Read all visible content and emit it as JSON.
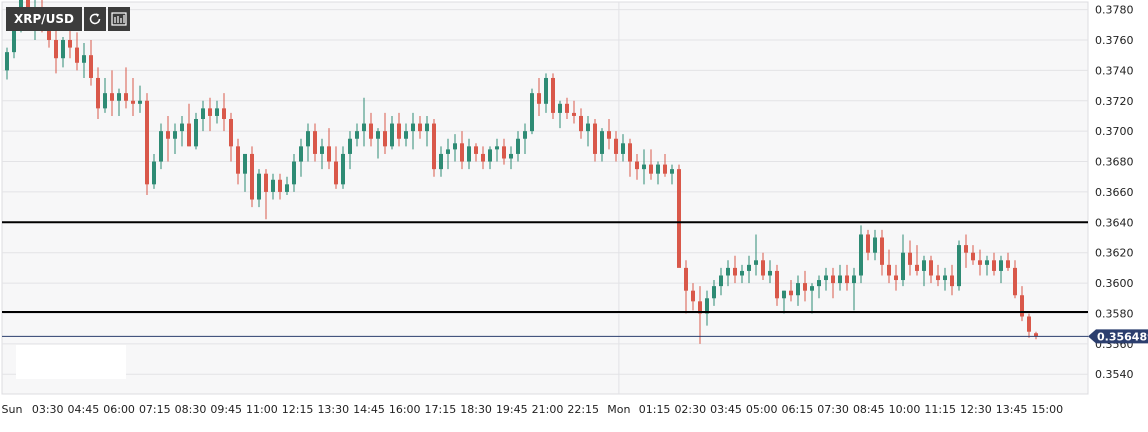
{
  "toolbar": {
    "symbol": "XRP/USD",
    "refresh_icon": "refresh-icon",
    "chart_type_icon": "candles-icon"
  },
  "colors": {
    "background": "#f7f7f8",
    "grid": "#e3e3e6",
    "up": "#2e8b74",
    "down": "#d9584a",
    "level_line": "#000000",
    "price_line": "#2b3e6e",
    "price_tag": "#2b3e6e",
    "axis_text": "#222222"
  },
  "chart_data": {
    "type": "candlestick",
    "title": "",
    "xlabel": "",
    "ylabel": "",
    "ylim": [
      0.3527,
      0.3785
    ],
    "y_ticks": [
      "0.3780",
      "0.3760",
      "0.3740",
      "0.3720",
      "0.3700",
      "0.3680",
      "0.3660",
      "0.3640",
      "0.3620",
      "0.3600",
      "0.3580",
      "0.3560",
      "0.3540"
    ],
    "x_labels": [
      "Sun",
      "03:30",
      "04:45",
      "06:00",
      "07:15",
      "08:30",
      "09:45",
      "11:00",
      "12:15",
      "13:30",
      "14:45",
      "16:00",
      "17:15",
      "18:30",
      "19:45",
      "21:00",
      "22:15",
      "Mon",
      "01:15",
      "02:30",
      "03:45",
      "05:00",
      "06:15",
      "07:30",
      "08:45",
      "10:00",
      "11:15",
      "12:30",
      "13:45",
      "15:00"
    ],
    "horizontal_levels": [
      0.364,
      0.3581
    ],
    "current_price": 0.356489,
    "current_price_label": "0.356489",
    "grid": true,
    "series": [
      {
        "values": [
          [
            0.374,
            0.3755,
            0.3734,
            0.3752
          ],
          [
            0.3752,
            0.3778,
            0.3748,
            0.3775
          ],
          [
            0.3775,
            0.38,
            0.3765,
            0.379
          ],
          [
            0.379,
            0.3798,
            0.377,
            0.3775
          ],
          [
            0.3775,
            0.379,
            0.376,
            0.378
          ],
          [
            0.378,
            0.379,
            0.3765,
            0.377
          ],
          [
            0.377,
            0.3778,
            0.3755,
            0.376
          ],
          [
            0.376,
            0.3768,
            0.3738,
            0.3748
          ],
          [
            0.3748,
            0.3762,
            0.3742,
            0.376
          ],
          [
            0.376,
            0.3768,
            0.3748,
            0.3755
          ],
          [
            0.3755,
            0.3765,
            0.374,
            0.3745
          ],
          [
            0.3745,
            0.3758,
            0.3735,
            0.375
          ],
          [
            0.375,
            0.376,
            0.373,
            0.3735
          ],
          [
            0.3735,
            0.3742,
            0.3708,
            0.3715
          ],
          [
            0.3715,
            0.3735,
            0.3712,
            0.3725
          ],
          [
            0.3725,
            0.374,
            0.371,
            0.372
          ],
          [
            0.372,
            0.3728,
            0.371,
            0.3725
          ],
          [
            0.3725,
            0.3742,
            0.3715,
            0.372
          ],
          [
            0.372,
            0.3735,
            0.371,
            0.3718
          ],
          [
            0.3718,
            0.373,
            0.3712,
            0.372
          ],
          [
            0.372,
            0.3725,
            0.3658,
            0.3665
          ],
          [
            0.3665,
            0.3685,
            0.3662,
            0.368
          ],
          [
            0.368,
            0.3705,
            0.3675,
            0.37
          ],
          [
            0.37,
            0.371,
            0.368,
            0.3695
          ],
          [
            0.3695,
            0.3705,
            0.3685,
            0.37
          ],
          [
            0.37,
            0.371,
            0.369,
            0.3705
          ],
          [
            0.3705,
            0.3718,
            0.369,
            0.369
          ],
          [
            0.369,
            0.3712,
            0.3688,
            0.3708
          ],
          [
            0.3708,
            0.372,
            0.37,
            0.3715
          ],
          [
            0.3715,
            0.3722,
            0.37,
            0.371
          ],
          [
            0.371,
            0.372,
            0.3705,
            0.3715
          ],
          [
            0.3715,
            0.3725,
            0.37,
            0.3708
          ],
          [
            0.3708,
            0.3712,
            0.368,
            0.369
          ],
          [
            0.369,
            0.3695,
            0.3665,
            0.3672
          ],
          [
            0.3672,
            0.3685,
            0.366,
            0.3685
          ],
          [
            0.3685,
            0.369,
            0.365,
            0.3655
          ],
          [
            0.3655,
            0.3675,
            0.365,
            0.3672
          ],
          [
            0.3672,
            0.3675,
            0.3642,
            0.366
          ],
          [
            0.366,
            0.3672,
            0.3655,
            0.3668
          ],
          [
            0.3668,
            0.3672,
            0.3655,
            0.366
          ],
          [
            0.366,
            0.367,
            0.3658,
            0.3665
          ],
          [
            0.3665,
            0.3685,
            0.366,
            0.368
          ],
          [
            0.368,
            0.3695,
            0.367,
            0.369
          ],
          [
            0.369,
            0.3705,
            0.368,
            0.37
          ],
          [
            0.37,
            0.3705,
            0.368,
            0.3685
          ],
          [
            0.3685,
            0.3695,
            0.3675,
            0.369
          ],
          [
            0.369,
            0.3702,
            0.3675,
            0.368
          ],
          [
            0.368,
            0.369,
            0.3662,
            0.3665
          ],
          [
            0.3665,
            0.369,
            0.3662,
            0.3685
          ],
          [
            0.3685,
            0.37,
            0.3675,
            0.3695
          ],
          [
            0.3695,
            0.3705,
            0.369,
            0.37
          ],
          [
            0.37,
            0.3722,
            0.369,
            0.3705
          ],
          [
            0.3705,
            0.3712,
            0.369,
            0.3695
          ],
          [
            0.3695,
            0.3702,
            0.3682,
            0.37
          ],
          [
            0.37,
            0.3712,
            0.3685,
            0.369
          ],
          [
            0.369,
            0.371,
            0.3688,
            0.3705
          ],
          [
            0.3705,
            0.3712,
            0.369,
            0.3695
          ],
          [
            0.3695,
            0.3705,
            0.369,
            0.37
          ],
          [
            0.37,
            0.3712,
            0.3688,
            0.3705
          ],
          [
            0.3705,
            0.371,
            0.3695,
            0.37
          ],
          [
            0.37,
            0.371,
            0.369,
            0.3705
          ],
          [
            0.3705,
            0.3708,
            0.367,
            0.3675
          ],
          [
            0.3675,
            0.369,
            0.367,
            0.3685
          ],
          [
            0.3685,
            0.3695,
            0.3675,
            0.3688
          ],
          [
            0.3688,
            0.3698,
            0.368,
            0.3692
          ],
          [
            0.3692,
            0.37,
            0.3675,
            0.368
          ],
          [
            0.368,
            0.3695,
            0.3675,
            0.369
          ],
          [
            0.369,
            0.3692,
            0.368,
            0.3685
          ],
          [
            0.3685,
            0.369,
            0.3675,
            0.368
          ],
          [
            0.368,
            0.369,
            0.3675,
            0.3688
          ],
          [
            0.3688,
            0.3695,
            0.368,
            0.369
          ],
          [
            0.369,
            0.3695,
            0.3678,
            0.3682
          ],
          [
            0.3682,
            0.369,
            0.3675,
            0.3685
          ],
          [
            0.3685,
            0.37,
            0.368,
            0.3695
          ],
          [
            0.3695,
            0.3705,
            0.3685,
            0.37
          ],
          [
            0.37,
            0.3728,
            0.3698,
            0.3725
          ],
          [
            0.3725,
            0.3735,
            0.371,
            0.3718
          ],
          [
            0.3718,
            0.3738,
            0.3712,
            0.3735
          ],
          [
            0.3735,
            0.3738,
            0.3708,
            0.3712
          ],
          [
            0.3712,
            0.372,
            0.3702,
            0.3718
          ],
          [
            0.3718,
            0.3722,
            0.3708,
            0.3712
          ],
          [
            0.3712,
            0.372,
            0.3705,
            0.371
          ],
          [
            0.371,
            0.3715,
            0.3695,
            0.37
          ],
          [
            0.37,
            0.371,
            0.369,
            0.3705
          ],
          [
            0.3705,
            0.3708,
            0.368,
            0.3685
          ],
          [
            0.3685,
            0.3702,
            0.368,
            0.37
          ],
          [
            0.37,
            0.3708,
            0.3688,
            0.3695
          ],
          [
            0.3695,
            0.37,
            0.368,
            0.3685
          ],
          [
            0.3685,
            0.3698,
            0.368,
            0.3692
          ],
          [
            0.3692,
            0.3695,
            0.367,
            0.368
          ],
          [
            0.368,
            0.3685,
            0.3668,
            0.3675
          ],
          [
            0.3675,
            0.3688,
            0.3665,
            0.3678
          ],
          [
            0.3678,
            0.3688,
            0.3668,
            0.3672
          ],
          [
            0.3672,
            0.368,
            0.3665,
            0.3678
          ],
          [
            0.3678,
            0.3685,
            0.367,
            0.3672
          ],
          [
            0.3672,
            0.3678,
            0.3665,
            0.3675
          ],
          [
            0.3675,
            0.3678,
            0.3655,
            0.361
          ],
          [
            0.361,
            0.3615,
            0.358,
            0.3595
          ],
          [
            0.3595,
            0.36,
            0.3582,
            0.3588
          ],
          [
            0.3588,
            0.3598,
            0.356,
            0.358
          ],
          [
            0.358,
            0.3595,
            0.3572,
            0.359
          ],
          [
            0.359,
            0.3602,
            0.3585,
            0.3598
          ],
          [
            0.3598,
            0.361,
            0.3592,
            0.3605
          ],
          [
            0.3605,
            0.3615,
            0.3598,
            0.361
          ],
          [
            0.361,
            0.3618,
            0.36,
            0.3605
          ],
          [
            0.3605,
            0.3612,
            0.36,
            0.3608
          ],
          [
            0.3608,
            0.3618,
            0.36,
            0.3612
          ],
          [
            0.3612,
            0.3632,
            0.3605,
            0.3615
          ],
          [
            0.3615,
            0.362,
            0.3602,
            0.3605
          ],
          [
            0.3605,
            0.3615,
            0.36,
            0.3608
          ],
          [
            0.3608,
            0.3612,
            0.3585,
            0.359
          ],
          [
            0.359,
            0.3595,
            0.358,
            0.3595
          ],
          [
            0.3595,
            0.3602,
            0.3588,
            0.3592
          ],
          [
            0.3592,
            0.3605,
            0.3585,
            0.36
          ],
          [
            0.36,
            0.3608,
            0.3588,
            0.3595
          ],
          [
            0.3595,
            0.36,
            0.358,
            0.3598
          ],
          [
            0.3598,
            0.3605,
            0.359,
            0.3602
          ],
          [
            0.3602,
            0.361,
            0.3595,
            0.3605
          ],
          [
            0.3605,
            0.361,
            0.359,
            0.36
          ],
          [
            0.36,
            0.3612,
            0.3595,
            0.3605
          ],
          [
            0.3605,
            0.3612,
            0.3595,
            0.36
          ],
          [
            0.36,
            0.361,
            0.3582,
            0.3605
          ],
          [
            0.3605,
            0.3638,
            0.36,
            0.3632
          ],
          [
            0.3632,
            0.3635,
            0.3615,
            0.362
          ],
          [
            0.362,
            0.3635,
            0.3615,
            0.363
          ],
          [
            0.363,
            0.3635,
            0.3605,
            0.3612
          ],
          [
            0.3612,
            0.3622,
            0.36,
            0.3605
          ],
          [
            0.3605,
            0.3612,
            0.3595,
            0.3602
          ],
          [
            0.3602,
            0.3632,
            0.3598,
            0.362
          ],
          [
            0.362,
            0.3628,
            0.3605,
            0.3612
          ],
          [
            0.3612,
            0.3625,
            0.3605,
            0.3608
          ],
          [
            0.3608,
            0.3618,
            0.3598,
            0.3615
          ],
          [
            0.3615,
            0.3618,
            0.36,
            0.3605
          ],
          [
            0.3605,
            0.3612,
            0.3598,
            0.3602
          ],
          [
            0.3602,
            0.361,
            0.3595,
            0.3605
          ],
          [
            0.3605,
            0.3612,
            0.3592,
            0.3598
          ],
          [
            0.3598,
            0.3628,
            0.3595,
            0.3625
          ],
          [
            0.3625,
            0.3632,
            0.361,
            0.362
          ],
          [
            0.362,
            0.3625,
            0.3612,
            0.3615
          ],
          [
            0.3615,
            0.3622,
            0.3605,
            0.3612
          ],
          [
            0.3612,
            0.3618,
            0.3605,
            0.3615
          ],
          [
            0.3615,
            0.362,
            0.3605,
            0.3608
          ],
          [
            0.3608,
            0.3618,
            0.36,
            0.3615
          ],
          [
            0.3615,
            0.362,
            0.3608,
            0.361
          ],
          [
            0.361,
            0.3615,
            0.359,
            0.3592
          ],
          [
            0.3592,
            0.3598,
            0.3575,
            0.3578
          ],
          [
            0.3578,
            0.358,
            0.3564,
            0.3568
          ],
          [
            0.3567,
            0.3568,
            0.3563,
            0.35649
          ]
        ]
      }
    ]
  }
}
